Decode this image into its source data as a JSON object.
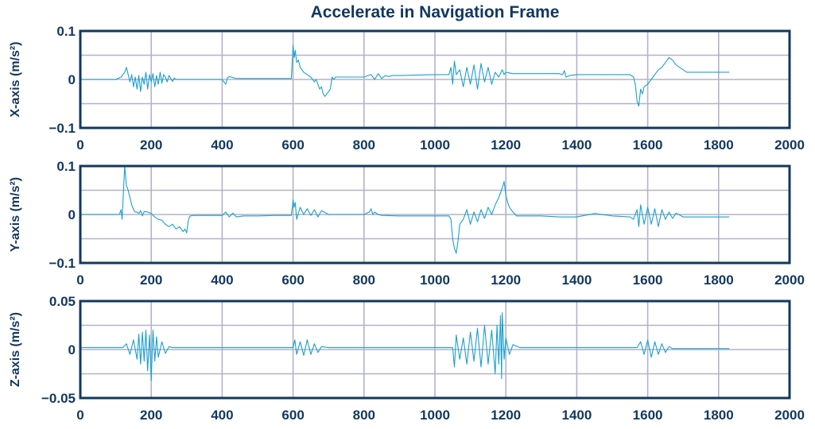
{
  "title": "Accelerate in Navigation Frame",
  "colors": {
    "text": "#12385f",
    "frame": "#12385f",
    "grid": "#b3b3c7",
    "line": "#1aa0d0",
    "background": "#ffffff"
  },
  "chart_data": [
    {
      "type": "line",
      "ylabel": "X-axis (m/s²)",
      "xlabel": "",
      "xlim": [
        0,
        2000
      ],
      "ylim": [
        -0.1,
        0.1
      ],
      "xticks": [
        0,
        200,
        400,
        600,
        800,
        1000,
        1200,
        1400,
        1600,
        1800,
        2000
      ],
      "xtick_labels": [
        "0",
        "200",
        "400",
        "600",
        "800",
        "1000",
        "1200",
        "1400",
        "1600",
        "1800",
        "2000"
      ],
      "yticks": [
        -0.1,
        0,
        0.1
      ],
      "ytick_labels": [
        "−0.1",
        "0",
        "0.1"
      ],
      "grid_yticks": [
        -0.1,
        -0.05,
        0,
        0.05,
        0.1
      ],
      "grid": true,
      "series": [
        {
          "x": [
            0,
            100,
            115,
            120,
            125,
            130,
            135,
            140,
            145,
            150,
            155,
            160,
            165,
            170,
            175,
            180,
            185,
            190,
            195,
            200,
            205,
            210,
            215,
            220,
            225,
            230,
            235,
            240,
            245,
            250,
            255,
            260,
            265,
            270,
            280,
            300,
            350,
            400,
            405,
            410,
            415,
            420,
            430,
            440,
            460,
            500,
            550,
            595,
            600,
            603,
            606,
            610,
            615,
            620,
            630,
            640,
            650,
            660,
            665,
            670,
            675,
            680,
            685,
            690,
            695,
            700,
            705,
            710,
            715,
            720,
            750,
            800,
            820,
            830,
            840,
            850,
            860,
            870,
            880,
            900,
            1000,
            1040,
            1045,
            1050,
            1055,
            1060,
            1070,
            1080,
            1090,
            1100,
            1110,
            1120,
            1130,
            1140,
            1150,
            1160,
            1170,
            1180,
            1190,
            1195,
            1200,
            1220,
            1300,
            1350,
            1360,
            1365,
            1370,
            1380,
            1400,
            1500,
            1550,
            1560,
            1565,
            1570,
            1575,
            1580,
            1585,
            1590,
            1600,
            1610,
            1620,
            1630,
            1640,
            1650,
            1660,
            1670,
            1680,
            1690,
            1700,
            1710,
            1800,
            1830
          ],
          "y": [
            0,
            0,
            0.005,
            0.01,
            0.015,
            0.025,
            0.01,
            -0.005,
            0.01,
            -0.015,
            0.005,
            -0.02,
            0.008,
            -0.025,
            0.005,
            -0.01,
            0.015,
            -0.02,
            0.01,
            -0.005,
            0.012,
            -0.015,
            0.008,
            -0.01,
            0.015,
            -0.008,
            0.01,
            0.005,
            -0.005,
            0.008,
            0.002,
            -0.004,
            0.003,
            0,
            0,
            0,
            0,
            0,
            -0.005,
            -0.01,
            0.003,
            0.006,
            0.004,
            0.002,
            0.002,
            0.002,
            0.002,
            0.002,
            0.07,
            0.045,
            0.06,
            0.035,
            0.04,
            0.025,
            0.015,
            0.01,
            0.005,
            -0.005,
            0,
            -0.01,
            -0.02,
            -0.015,
            -0.03,
            -0.035,
            -0.03,
            -0.025,
            -0.02,
            0.005,
            0,
            0.005,
            0.005,
            0.005,
            0.01,
            0,
            0.012,
            0.002,
            0.008,
            0.006,
            0.008,
            0.008,
            0.01,
            0.01,
            0.025,
            -0.01,
            0.038,
            0.01,
            0.02,
            -0.015,
            0.025,
            -0.01,
            0.03,
            -0.02,
            0.033,
            -0.005,
            0.025,
            -0.01,
            0.015,
            0.005,
            0.02,
            0.01,
            0.015,
            0.012,
            0.012,
            0.012,
            0.01,
            0.018,
            0.005,
            0.008,
            0.01,
            0.01,
            0.01,
            0.005,
            -0.01,
            -0.045,
            -0.055,
            -0.02,
            -0.03,
            -0.015,
            -0.01,
            0,
            0.01,
            0.02,
            0.025,
            0.035,
            0.045,
            0.04,
            0.03,
            0.025,
            0.02,
            0.015,
            0.015,
            0.015
          ]
        }
      ]
    },
    {
      "type": "line",
      "ylabel": "Y-axis (m/s²)",
      "xlabel": "",
      "xlim": [
        0,
        2000
      ],
      "ylim": [
        -0.1,
        0.1
      ],
      "xticks": [
        0,
        200,
        400,
        600,
        800,
        1000,
        1200,
        1400,
        1600,
        1800,
        2000
      ],
      "xtick_labels": [
        "0",
        "200",
        "400",
        "600",
        "800",
        "1000",
        "1200",
        "1400",
        "1600",
        "1800",
        "2000"
      ],
      "yticks": [
        -0.1,
        0,
        0.1
      ],
      "ytick_labels": [
        "−0.1",
        "0",
        "0.1"
      ],
      "grid_yticks": [
        -0.1,
        -0.05,
        0,
        0.05,
        0.1
      ],
      "grid": true,
      "series": [
        {
          "x": [
            0,
            110,
            115,
            118,
            120,
            125,
            130,
            135,
            140,
            145,
            150,
            155,
            160,
            165,
            170,
            175,
            180,
            190,
            200,
            210,
            220,
            230,
            240,
            250,
            260,
            270,
            280,
            290,
            295,
            300,
            305,
            310,
            320,
            350,
            400,
            410,
            420,
            430,
            440,
            460,
            500,
            550,
            595,
            600,
            603,
            606,
            610,
            620,
            630,
            640,
            650,
            660,
            670,
            680,
            700,
            750,
            800,
            815,
            820,
            825,
            830,
            840,
            850,
            900,
            1000,
            1040,
            1045,
            1050,
            1055,
            1060,
            1065,
            1070,
            1080,
            1090,
            1100,
            1110,
            1120,
            1130,
            1140,
            1150,
            1160,
            1170,
            1180,
            1190,
            1195,
            1200,
            1205,
            1210,
            1220,
            1230,
            1300,
            1350,
            1400,
            1450,
            1500,
            1550,
            1560,
            1570,
            1575,
            1580,
            1590,
            1600,
            1610,
            1620,
            1630,
            1640,
            1650,
            1660,
            1670,
            1680,
            1700,
            1800,
            1830
          ],
          "y": [
            0,
            0,
            0.01,
            -0.01,
            0.02,
            0.1,
            0.06,
            0.05,
            0.035,
            0.02,
            0.01,
            0.005,
            0.005,
            0.002,
            0.008,
            -0.003,
            0.006,
            0.005,
            0.002,
            -0.005,
            -0.01,
            -0.012,
            -0.02,
            -0.025,
            -0.02,
            -0.03,
            -0.025,
            -0.035,
            -0.03,
            -0.038,
            -0.01,
            -0.003,
            -0.002,
            -0.002,
            -0.002,
            0.005,
            -0.005,
            0.003,
            -0.005,
            -0.003,
            -0.003,
            -0.002,
            -0.002,
            0.03,
            0.015,
            0.025,
            -0.01,
            0.015,
            0,
            0.012,
            -0.002,
            0.01,
            -0.005,
            0.008,
            0,
            0,
            0,
            0.005,
            0.012,
            0,
            0.005,
            0,
            -0.002,
            -0.003,
            -0.003,
            -0.003,
            -0.01,
            -0.05,
            -0.07,
            -0.08,
            -0.055,
            -0.02,
            -0.01,
            0.01,
            -0.02,
            0.005,
            -0.015,
            0.01,
            -0.008,
            0.015,
            0,
            0.02,
            0.035,
            0.055,
            0.068,
            0.04,
            0.025,
            0.015,
            0.005,
            -0.003,
            -0.003,
            -0.005,
            -0.005,
            0.002,
            -0.003,
            -0.005,
            -0.01,
            0.01,
            -0.025,
            0.02,
            -0.02,
            0.015,
            -0.02,
            0.012,
            -0.025,
            0.01,
            -0.01,
            0.005,
            -0.008,
            0.003,
            -0.005,
            -0.005,
            -0.005
          ]
        }
      ]
    },
    {
      "type": "line",
      "ylabel": "Z-axis (m/s²)",
      "xlabel": "",
      "xlim": [
        0,
        2000
      ],
      "ylim": [
        -0.05,
        0.05
      ],
      "xticks": [
        0,
        200,
        400,
        600,
        800,
        1000,
        1200,
        1400,
        1600,
        1800,
        2000
      ],
      "xtick_labels": [
        "0",
        "200",
        "400",
        "600",
        "800",
        "1000",
        "1200",
        "1400",
        "1600",
        "1800",
        "2000"
      ],
      "yticks": [
        -0.05,
        0,
        0.05
      ],
      "ytick_labels": [
        "−0.05",
        "0",
        "0.05"
      ],
      "grid_yticks": [
        -0.05,
        -0.025,
        0,
        0.025,
        0.05
      ],
      "grid": true,
      "series": [
        {
          "x": [
            0,
            120,
            130,
            140,
            150,
            160,
            165,
            170,
            175,
            180,
            185,
            190,
            195,
            200,
            205,
            210,
            215,
            220,
            230,
            240,
            250,
            260,
            300,
            400,
            600,
            605,
            610,
            620,
            630,
            640,
            650,
            660,
            670,
            680,
            700,
            750,
            1000,
            1050,
            1055,
            1060,
            1070,
            1080,
            1090,
            1100,
            1110,
            1120,
            1130,
            1140,
            1150,
            1160,
            1170,
            1175,
            1180,
            1185,
            1188,
            1190,
            1195,
            1200,
            1210,
            1220,
            1240,
            1300,
            1500,
            1570,
            1580,
            1590,
            1600,
            1610,
            1620,
            1630,
            1640,
            1650,
            1660,
            1670,
            1700,
            1830
          ],
          "y": [
            0.002,
            0.002,
            0.006,
            -0.005,
            0.01,
            -0.01,
            0.016,
            -0.015,
            0.018,
            -0.012,
            0.02,
            -0.022,
            0.015,
            -0.032,
            0.02,
            -0.012,
            0.013,
            -0.008,
            0.008,
            -0.004,
            0.003,
            0.002,
            0.002,
            0.002,
            0.002,
            0.01,
            -0.005,
            0.008,
            -0.006,
            0.01,
            -0.005,
            0.006,
            -0.003,
            0.003,
            0.002,
            0.002,
            0.002,
            0.002,
            -0.018,
            0.015,
            -0.01,
            0.012,
            -0.015,
            0.018,
            -0.012,
            0.022,
            -0.018,
            0.025,
            -0.015,
            0.02,
            -0.025,
            0.025,
            -0.015,
            0.035,
            -0.03,
            0.038,
            -0.01,
            0.012,
            -0.005,
            0.005,
            0.002,
            0.002,
            0.002,
            0.002,
            0.008,
            -0.005,
            0.01,
            -0.008,
            0.008,
            -0.005,
            0.006,
            -0.003,
            0.003,
            0.001,
            0.001,
            0.001
          ]
        }
      ]
    }
  ]
}
